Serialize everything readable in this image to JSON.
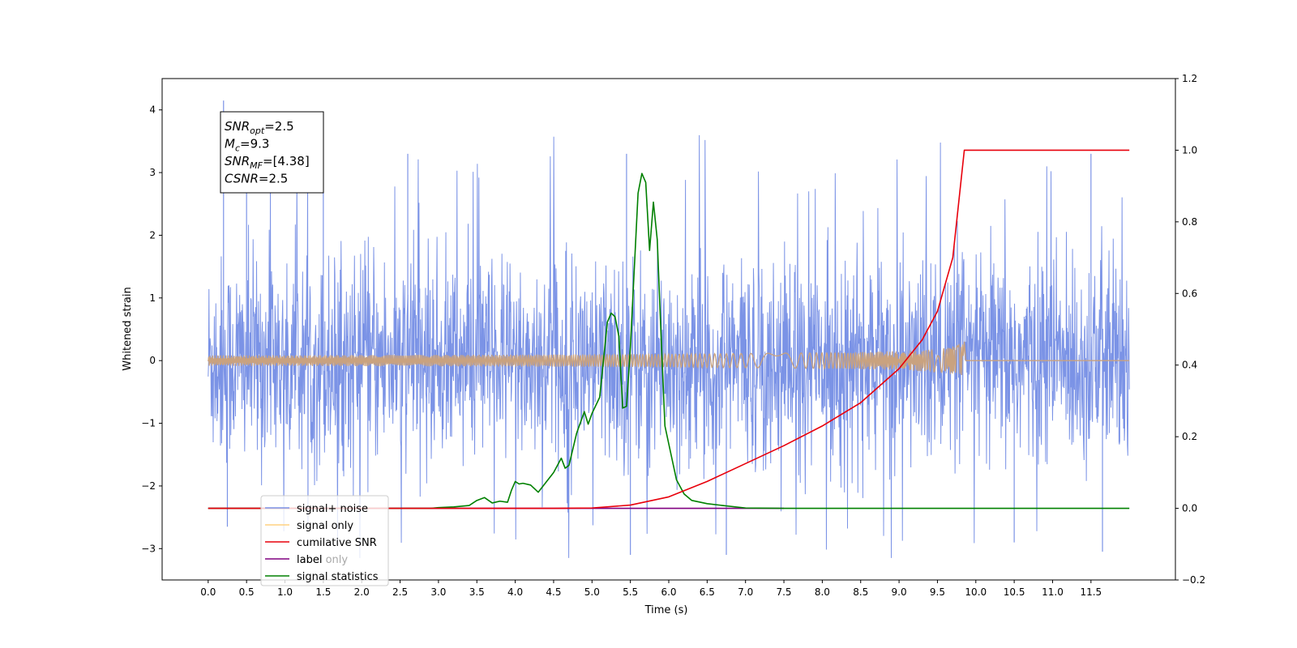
{
  "chart_data": {
    "type": "line",
    "xlabel": "Time (s)",
    "ylabel": "Whitened strain",
    "xlim": [
      -0.6,
      12.6
    ],
    "ylim": [
      -3.5,
      4.5
    ],
    "y2lim": [
      -0.2,
      1.2
    ],
    "x_ticks": [
      "0.0",
      "0.5",
      "1.0",
      "1.5",
      "2.0",
      "2.5",
      "3.0",
      "3.5",
      "4.0",
      "4.5",
      "5.0",
      "5.5",
      "6.0",
      "6.5",
      "7.0",
      "7.5",
      "8.0",
      "8.5",
      "9.0",
      "9.5",
      "10.0",
      "10.5",
      "11.0",
      "11.5"
    ],
    "y_ticks": [
      "4",
      "3",
      "2",
      "1",
      "0",
      "−1",
      "−2",
      "−3"
    ],
    "y2_ticks": [
      "1.2",
      "1.0",
      "0.8",
      "0.6",
      "0.4",
      "0.2",
      "0.0",
      "−0.2"
    ],
    "grid": false,
    "legend_position": "lower-left",
    "annotation": {
      "lines": [
        {
          "sym": "SNR",
          "sub": "opt",
          "value": "=2.5"
        },
        {
          "sym": "M",
          "sub": "c",
          "value": "=9.3"
        },
        {
          "sym": "SNR",
          "sub": "MF",
          "value": "=[4.38]"
        },
        {
          "sym": "CSNR",
          "sub": "",
          "value": "=2.5"
        }
      ]
    },
    "series": [
      {
        "name": "signal+ noise",
        "color": "#7b93e6",
        "axis": "left",
        "noise_band": {
          "x_start": 0.0,
          "x_end": 12.0,
          "mean": 0.0,
          "typical_low": -1.6,
          "typical_high": 1.6,
          "max": 4.15,
          "min": -3.15
        }
      },
      {
        "name": "signal only",
        "color": "#ffd280",
        "axis": "left",
        "chirp": {
          "x_start": 0.0,
          "x_merge": 9.85,
          "x_end": 12.0,
          "peak_amplitude": 0.35
        },
        "overlap_color": "#c9a27f"
      },
      {
        "name": "cumilative SNR",
        "color": "#e8000b",
        "axis": "right",
        "x": [
          0.0,
          4.5,
          5.0,
          5.5,
          6.0,
          6.5,
          7.0,
          7.5,
          8.0,
          8.5,
          9.0,
          9.3,
          9.5,
          9.7,
          9.85,
          12.0
        ],
        "y": [
          0.0,
          0.0,
          0.001,
          0.009,
          0.032,
          0.075,
          0.125,
          0.175,
          0.23,
          0.295,
          0.39,
          0.47,
          0.55,
          0.7,
          1.0,
          1.0
        ]
      },
      {
        "name": "label",
        "color": "#800080",
        "axis": "right",
        "x": [
          0.0,
          7.5
        ],
        "y": [
          0.0,
          0.0
        ]
      },
      {
        "name": "label only",
        "color": "#800080",
        "axis": "right",
        "hidden_behind_legend": true
      },
      {
        "name": "signal statistics",
        "color": "#008000",
        "axis": "right",
        "x": [
          0.0,
          2.9,
          3.0,
          3.2,
          3.4,
          3.5,
          3.6,
          3.7,
          3.8,
          3.9,
          3.95,
          4.0,
          4.05,
          4.1,
          4.2,
          4.3,
          4.5,
          4.6,
          4.65,
          4.7,
          4.8,
          4.9,
          4.95,
          5.0,
          5.1,
          5.2,
          5.25,
          5.3,
          5.35,
          5.4,
          5.45,
          5.5,
          5.6,
          5.65,
          5.7,
          5.75,
          5.8,
          5.85,
          5.9,
          5.95,
          6.0,
          6.1,
          6.2,
          6.3,
          6.5,
          6.7,
          7.0,
          7.5,
          12.0
        ],
        "y": [
          0.0,
          0.0,
          0.002,
          0.004,
          0.008,
          0.022,
          0.03,
          0.015,
          0.02,
          0.017,
          0.05,
          0.075,
          0.068,
          0.07,
          0.065,
          0.045,
          0.1,
          0.14,
          0.112,
          0.12,
          0.21,
          0.27,
          0.235,
          0.265,
          0.31,
          0.52,
          0.545,
          0.535,
          0.48,
          0.28,
          0.285,
          0.45,
          0.88,
          0.935,
          0.91,
          0.72,
          0.855,
          0.75,
          0.48,
          0.23,
          0.18,
          0.08,
          0.04,
          0.022,
          0.013,
          0.008,
          0.001,
          0.0,
          0.0
        ]
      }
    ]
  }
}
